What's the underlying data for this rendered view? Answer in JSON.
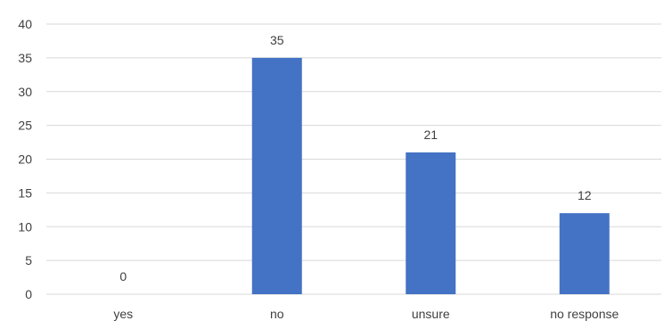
{
  "chart_data": {
    "type": "bar",
    "categories": [
      "yes",
      "no",
      "unsure",
      "no response"
    ],
    "values": [
      0,
      35,
      21,
      12
    ],
    "data_labels": [
      "0",
      "35",
      "21",
      "12"
    ],
    "y_ticks": [
      0,
      5,
      10,
      15,
      20,
      25,
      30,
      35,
      40
    ],
    "ylim": [
      0,
      40
    ],
    "grid": true,
    "legend": "none",
    "bar_color": "#4472C4",
    "grid_color": "#D9D9D9",
    "text_color": "#404040"
  }
}
